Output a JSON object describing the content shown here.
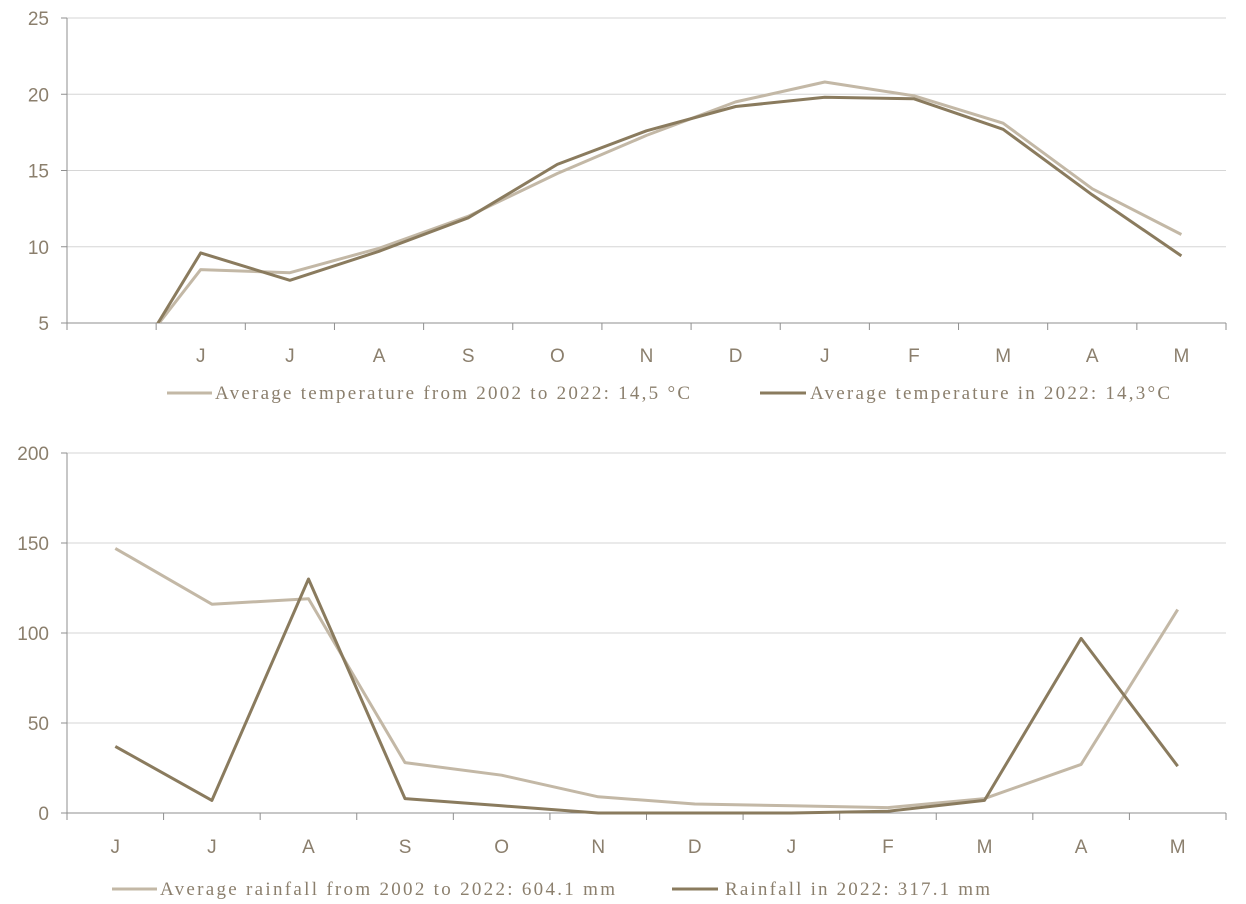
{
  "chart_data": [
    {
      "type": "line",
      "categories": [
        "",
        "J",
        "J",
        "A",
        "S",
        "O",
        "N",
        "D",
        "J",
        "F",
        "M",
        "A",
        "M"
      ],
      "series": [
        {
          "name": "Average temperature from 2002 to 2022: 14,5 °C",
          "color": "#c3b8a6",
          "values": [
            1,
            8.5,
            8.3,
            9.9,
            12.0,
            14.8,
            17.3,
            19.5,
            20.8,
            19.9,
            18.1,
            13.8,
            10.8
          ]
        },
        {
          "name": "Average temperature in 2022: 14,3°C",
          "color": "#8a7b5e",
          "values": [
            0,
            9.6,
            7.8,
            9.7,
            11.9,
            15.4,
            17.6,
            19.2,
            19.8,
            19.7,
            17.7,
            13.4,
            9.4
          ]
        }
      ],
      "ylim": [
        5,
        25
      ],
      "yticks": [
        5,
        10,
        15,
        20,
        25
      ],
      "grid": true,
      "legend": "bottom"
    },
    {
      "type": "line",
      "categories": [
        "J",
        "J",
        "A",
        "S",
        "O",
        "N",
        "D",
        "J",
        "F",
        "M",
        "A",
        "M"
      ],
      "series": [
        {
          "name": "Average rainfall from 2002 to 2022: 604.1 mm",
          "color": "#c3b8a6",
          "values": [
            147,
            116,
            119,
            28,
            21,
            9,
            5,
            4,
            3,
            8,
            27,
            113
          ]
        },
        {
          "name": "Rainfall in 2022: 317.1 mm",
          "color": "#8a7b5e",
          "values": [
            37,
            7,
            130,
            8,
            4,
            0,
            0,
            0,
            1,
            7,
            97,
            26
          ]
        }
      ],
      "ylim": [
        0,
        200
      ],
      "yticks": [
        0,
        50,
        100,
        150,
        200
      ],
      "grid": true,
      "legend": "bottom"
    }
  ]
}
